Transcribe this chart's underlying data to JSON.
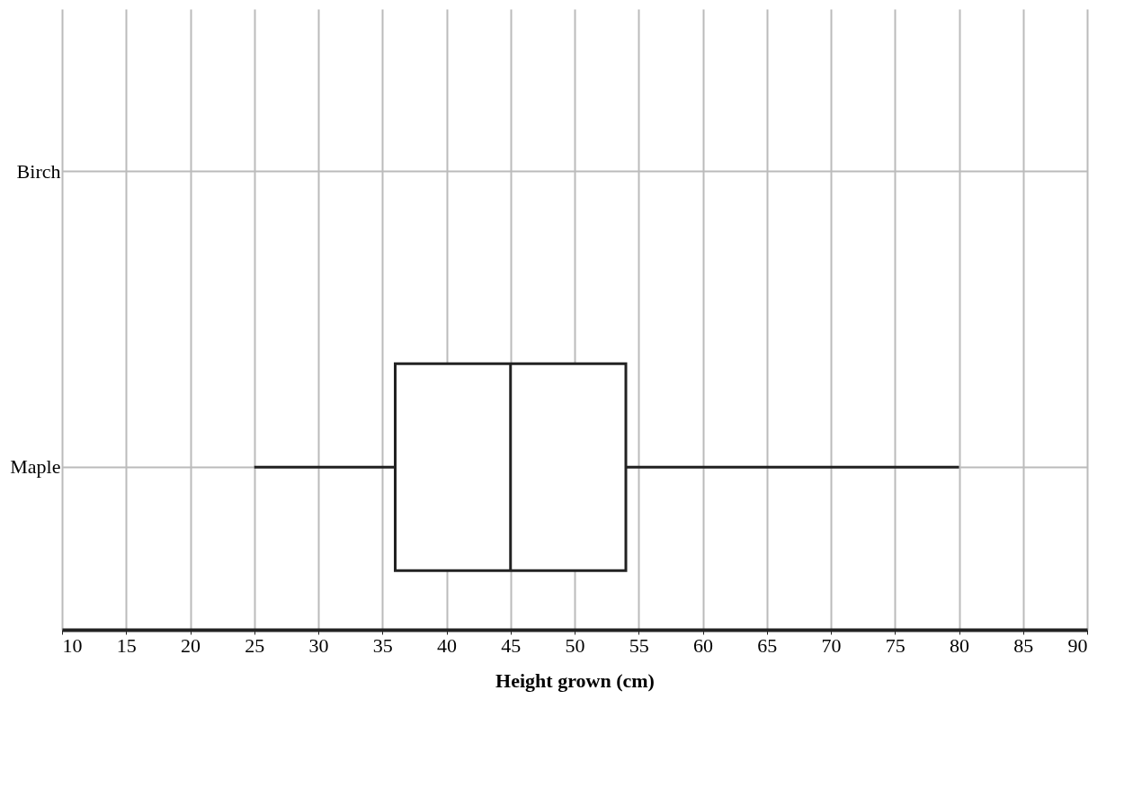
{
  "chart_data": {
    "type": "box",
    "orientation": "horizontal",
    "xlabel": "Height grown (cm)",
    "categories": [
      "Birch",
      "Maple"
    ],
    "boxes": [
      null,
      {
        "low": 25,
        "q1": 36,
        "median": 45,
        "q3": 54,
        "high": 80
      }
    ],
    "xlim": [
      10,
      90
    ],
    "xticks": [
      10,
      15,
      20,
      25,
      30,
      35,
      40,
      45,
      50,
      55,
      60,
      65,
      70,
      75,
      80,
      85,
      90
    ],
    "grid": true
  }
}
